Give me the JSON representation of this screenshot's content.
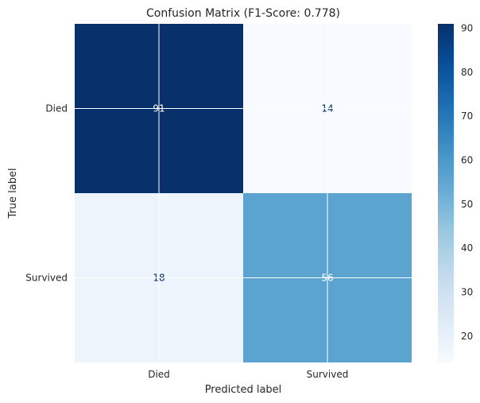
{
  "chart_data": {
    "type": "heatmap",
    "title": "Confusion Matrix (F1-Score: 0.778)",
    "xlabel": "Predicted label",
    "ylabel": "True label",
    "x_categories": [
      "Died",
      "Survived"
    ],
    "y_categories": [
      "Died",
      "Survived"
    ],
    "values": [
      [
        91,
        14
      ],
      [
        18,
        56
      ]
    ],
    "colormap": "Blues",
    "colorbar": {
      "vmin": 14,
      "vmax": 91,
      "ticks": [
        20,
        30,
        40,
        50,
        60,
        70,
        80,
        90
      ]
    },
    "grid": true,
    "text_colors": {
      "dark": "#08306b",
      "light": "#ffffff"
    }
  }
}
